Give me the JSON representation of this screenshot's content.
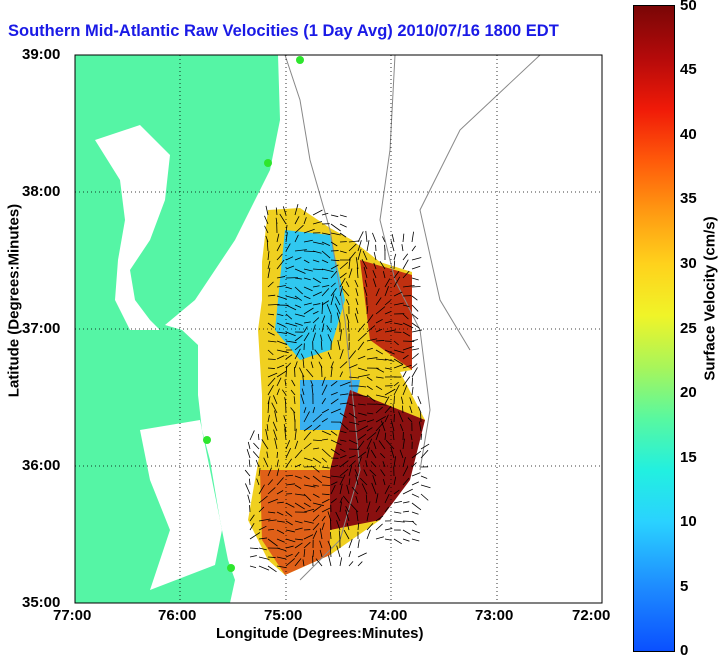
{
  "title": "Southern Mid-Atlantic Raw Velocities (1 Day Avg) 2010/07/16 1800 EDT",
  "axes": {
    "xlabel": "Longitude (Degrees:Minutes)",
    "ylabel": "Latitude (Degrees:Minutes)",
    "x_ticks": [
      "77:00",
      "76:00",
      "75:00",
      "74:00",
      "73:00",
      "72:00"
    ],
    "y_ticks": [
      "39:00",
      "38:00",
      "37:00",
      "36:00",
      "35:00"
    ]
  },
  "colorbar": {
    "label": "Surface Velocity (cm/s)",
    "ticks": [
      "50",
      "45",
      "40",
      "35",
      "30",
      "25",
      "20",
      "15",
      "10",
      "5",
      "0"
    ],
    "range": [
      0,
      50
    ]
  },
  "map": {
    "lon_range": [
      -77,
      -72
    ],
    "lat_range": [
      35,
      39
    ],
    "grid": true,
    "land_color": "#55f5a5",
    "arrow_color": "#000000",
    "site_marker_color": "#2ee62e"
  }
}
